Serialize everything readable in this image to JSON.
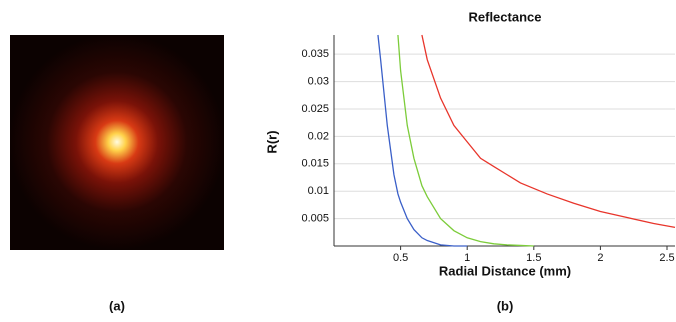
{
  "chart_data": {
    "type": "line",
    "title": "Reflectance",
    "x_label": "Radial Distance (mm)",
    "y_label": "R(r)",
    "x": [
      0.33,
      0.35,
      0.4,
      0.45,
      0.48,
      0.5,
      0.55,
      0.6,
      0.66,
      0.7,
      0.8,
      0.9,
      1.0,
      1.1,
      1.2,
      1.3,
      1.4,
      1.5,
      1.6,
      1.8,
      2.0,
      2.2,
      2.4,
      2.56
    ],
    "series": [
      {
        "color": "#3a5fc8",
        "values": [
          0.0385,
          0.034,
          0.022,
          0.013,
          0.0095,
          0.008,
          0.005,
          0.003,
          0.0015,
          0.001,
          0.0002,
          0,
          0,
          null,
          null,
          null,
          null,
          null,
          null,
          null,
          null,
          null,
          null,
          null
        ]
      },
      {
        "color": "#7ccc3a",
        "values": [
          null,
          null,
          null,
          null,
          0.0385,
          0.032,
          0.022,
          0.016,
          0.011,
          0.009,
          0.005,
          0.0028,
          0.0015,
          0.0008,
          0.0004,
          0.0002,
          0.0001,
          0,
          null,
          null,
          null,
          null,
          null,
          null
        ]
      },
      {
        "color": "#e8352b",
        "values": [
          null,
          null,
          null,
          null,
          null,
          null,
          null,
          null,
          0.0385,
          0.034,
          0.027,
          0.022,
          0.019,
          0.016,
          0.0145,
          0.013,
          0.0115,
          0.0105,
          0.0095,
          0.0078,
          0.0063,
          0.0052,
          0.0041,
          0.0034
        ]
      }
    ],
    "xlim": [
      0,
      2.56
    ],
    "ylim": [
      0,
      0.0385
    ],
    "xticks": [
      0.5,
      1,
      1.5,
      2,
      2.5
    ],
    "yticks": [
      0.005,
      0.01,
      0.015,
      0.02,
      0.025,
      0.03,
      0.035
    ],
    "grid": true
  },
  "captions": [
    "(a)",
    "(b)"
  ]
}
